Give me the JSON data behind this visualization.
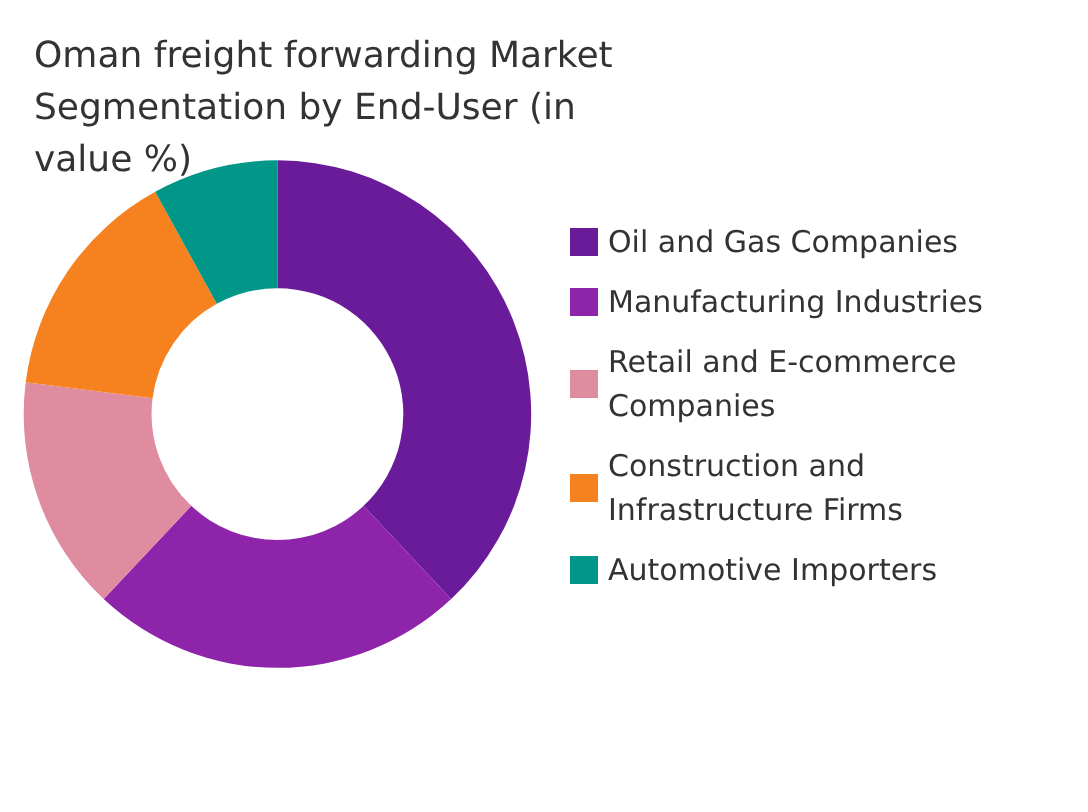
{
  "chart_data": {
    "type": "donut",
    "title": "Oman freight forwarding Market Segmentation by End-User (in value %)",
    "categories": [
      "Oil and Gas Companies",
      "Manufacturing Industries",
      "Retail and E-commerce Companies",
      "Construction and Infrastructure Firms",
      "Automotive Importers"
    ],
    "values": [
      38,
      24,
      15,
      15,
      8
    ],
    "colors": [
      "#6a1b9a",
      "#8e24aa",
      "#e08ca0",
      "#f5821f",
      "#009688"
    ],
    "legend": "right"
  }
}
